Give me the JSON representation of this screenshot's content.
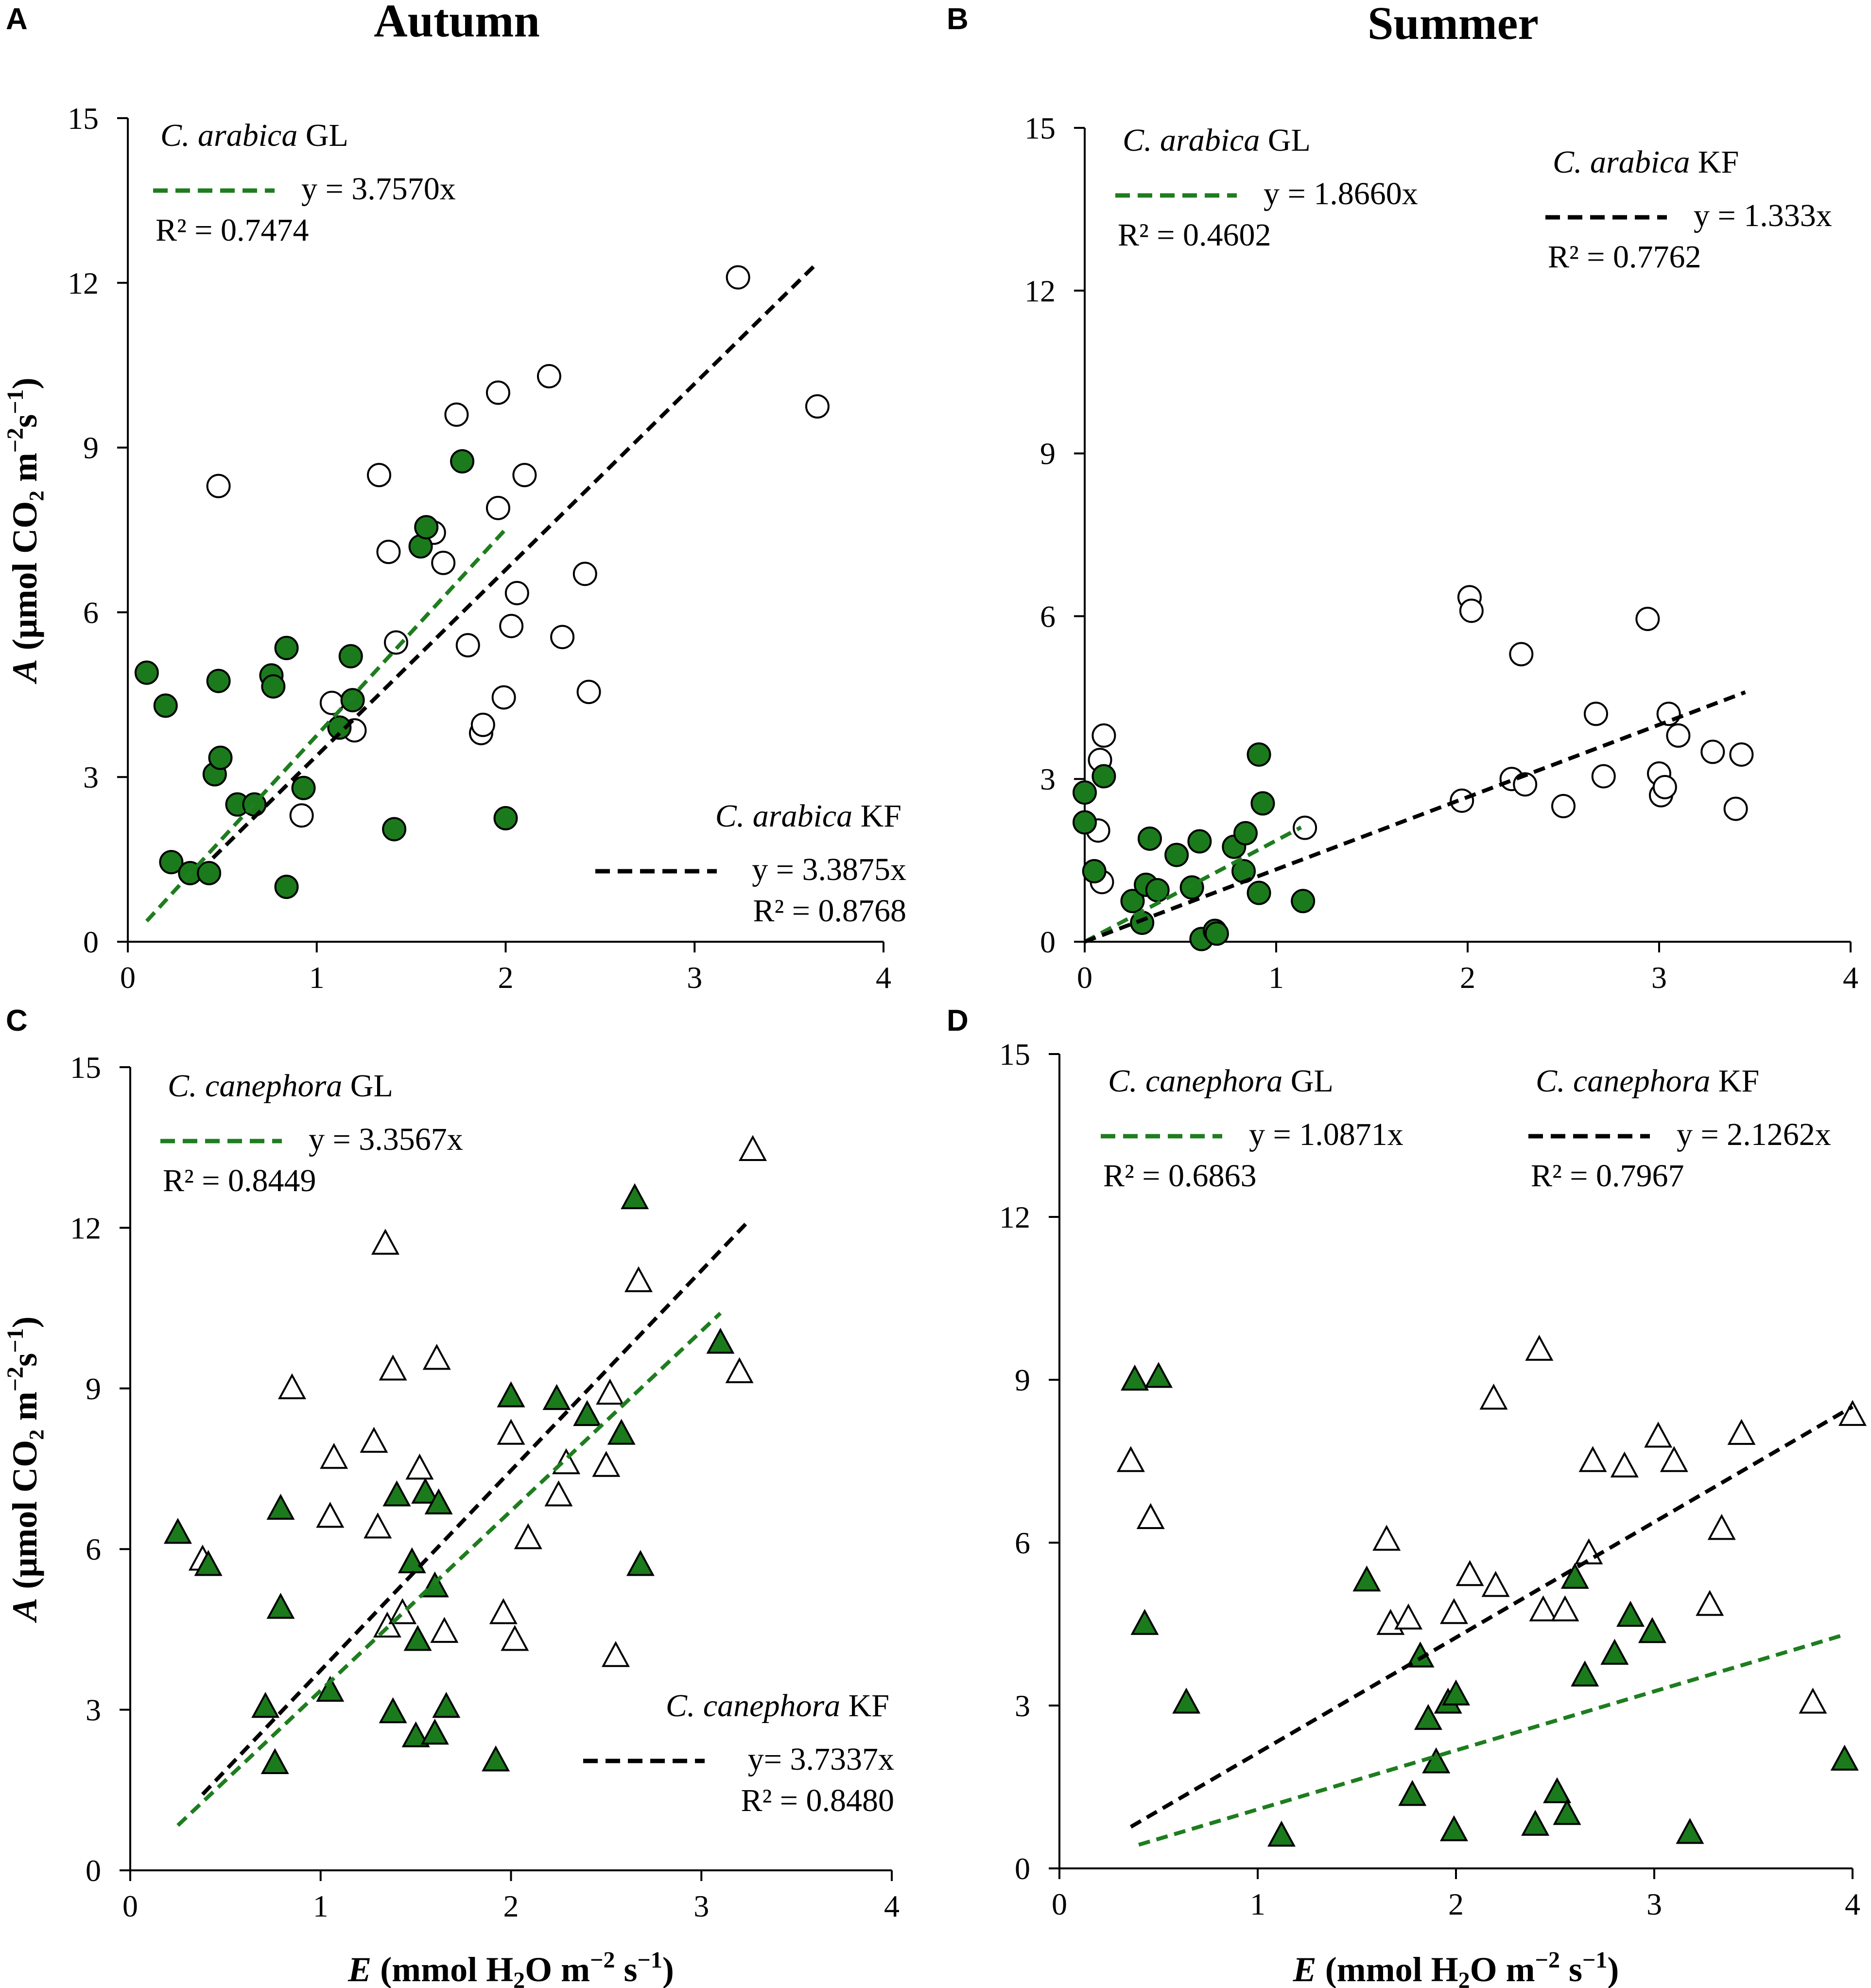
{
  "figure": {
    "col_titles": [
      "Autumn",
      "Summer"
    ],
    "x_axis_label": {
      "italic": "E",
      "rest": " (mmol H",
      "sub": "2",
      "rest2": "O m",
      "sup": "−2",
      "rest3": " s",
      "sup2": "−1",
      "end": ")"
    },
    "y_axis_label": {
      "italic": "A",
      "rest": " (μmol CO₂ m",
      "sup": "−2",
      "rest2": "s",
      "sup2": "−1",
      "end": ")"
    },
    "colors": {
      "gl_green": "#1e7d1e",
      "gl_fill": "#1b7a1b",
      "kf_black": "#000000",
      "open_fill": "#ffffff"
    }
  },
  "chart_data": [
    {
      "panel": "A",
      "type": "scatter",
      "title": "Autumn",
      "marker": "circle",
      "xlim": [
        0,
        4
      ],
      "ylim": [
        0,
        15
      ],
      "xticks": [
        0,
        1,
        2,
        3,
        4
      ],
      "yticks": [
        0,
        3,
        6,
        9,
        12,
        15
      ],
      "xlabel": "E (mmol H2O m−2 s−1)",
      "ylabel": "A (μmol CO₂ m−2s−1)",
      "series": [
        {
          "name": "C. arabica GL",
          "species": "C. arabica",
          "site": "GL",
          "filled": true,
          "equation": "y = 3.7570x",
          "r2": "R² = 0.7474",
          "slope": 3.757,
          "fit_range": [
            0.1,
            2.0
          ],
          "legend_pos": "top-left",
          "points": [
            [
              0.1,
              4.9
            ],
            [
              0.2,
              4.3
            ],
            [
              0.23,
              1.45
            ],
            [
              0.33,
              1.25
            ],
            [
              0.43,
              1.25
            ],
            [
              0.46,
              3.05
            ],
            [
              0.48,
              4.75
            ],
            [
              0.49,
              3.35
            ],
            [
              0.58,
              2.5
            ],
            [
              0.67,
              2.5
            ],
            [
              0.76,
              4.85
            ],
            [
              0.77,
              4.65
            ],
            [
              0.84,
              5.35
            ],
            [
              0.84,
              1.0
            ],
            [
              0.93,
              2.8
            ],
            [
              1.12,
              3.9
            ],
            [
              1.18,
              5.2
            ],
            [
              1.19,
              4.4
            ],
            [
              1.41,
              2.05
            ],
            [
              1.55,
              7.2
            ],
            [
              1.58,
              7.55
            ],
            [
              1.77,
              8.75
            ],
            [
              2.0,
              2.25
            ]
          ]
        },
        {
          "name": "C. arabica KF",
          "species": "C. arabica",
          "site": "KF",
          "filled": false,
          "equation": "y = 3.3875x",
          "r2": "R² = 0.8768",
          "slope": 3.3875,
          "fit_range": [
            0.45,
            3.65
          ],
          "legend_pos": "bottom-right",
          "points": [
            [
              0.48,
              8.3
            ],
            [
              0.92,
              2.3
            ],
            [
              1.08,
              4.35
            ],
            [
              1.2,
              3.85
            ],
            [
              1.33,
              8.5
            ],
            [
              1.38,
              7.1
            ],
            [
              1.42,
              5.45
            ],
            [
              1.62,
              7.45
            ],
            [
              1.67,
              6.9
            ],
            [
              1.74,
              9.6
            ],
            [
              1.8,
              5.4
            ],
            [
              1.87,
              3.8
            ],
            [
              1.88,
              3.95
            ],
            [
              1.96,
              10.0
            ],
            [
              1.96,
              7.9
            ],
            [
              1.99,
              4.45
            ],
            [
              2.03,
              5.75
            ],
            [
              2.06,
              6.35
            ],
            [
              2.1,
              8.5
            ],
            [
              2.23,
              10.3
            ],
            [
              2.3,
              5.55
            ],
            [
              2.42,
              6.7
            ],
            [
              2.44,
              4.55
            ],
            [
              3.23,
              12.1
            ],
            [
              3.65,
              9.75
            ]
          ]
        }
      ]
    },
    {
      "panel": "B",
      "type": "scatter",
      "title": "Summer",
      "marker": "circle",
      "xlim": [
        0,
        4
      ],
      "ylim": [
        0,
        15
      ],
      "xticks": [
        0,
        1,
        2,
        3,
        4
      ],
      "yticks": [
        0,
        3,
        6,
        9,
        12,
        15
      ],
      "xlabel": "E (mmol H2O m−2 s−1)",
      "ylabel": "A (μmol CO₂ m−2s−1)",
      "series": [
        {
          "name": "C. arabica GL",
          "species": "C. arabica",
          "site": "GL",
          "filled": true,
          "equation": "y = 1.8660x",
          "r2": "R² = 0.4602",
          "slope": 1.866,
          "fit_range": [
            0.0,
            1.13
          ],
          "legend_pos": "top-left",
          "points": [
            [
              0.0,
              2.2
            ],
            [
              0.0,
              2.75
            ],
            [
              0.05,
              1.3
            ],
            [
              0.1,
              3.05
            ],
            [
              0.25,
              0.75
            ],
            [
              0.3,
              0.35
            ],
            [
              0.32,
              1.05
            ],
            [
              0.34,
              1.9
            ],
            [
              0.38,
              0.95
            ],
            [
              0.48,
              1.6
            ],
            [
              0.56,
              1.0
            ],
            [
              0.6,
              1.85
            ],
            [
              0.61,
              0.05
            ],
            [
              0.68,
              0.2
            ],
            [
              0.69,
              0.15
            ],
            [
              0.78,
              1.75
            ],
            [
              0.83,
              1.3
            ],
            [
              0.84,
              2.0
            ],
            [
              0.91,
              0.9
            ],
            [
              0.91,
              3.45
            ],
            [
              0.93,
              2.55
            ],
            [
              1.14,
              0.75
            ]
          ]
        },
        {
          "name": "C. arabica KF",
          "species": "C. arabica",
          "site": "KF",
          "filled": false,
          "equation": "y = 1.333x",
          "r2": "R² = 0.7762",
          "slope": 1.333,
          "fit_range": [
            0.0,
            3.45
          ],
          "legend_pos": "top-right",
          "points": [
            [
              0.07,
              2.05
            ],
            [
              0.08,
              3.35
            ],
            [
              0.09,
              1.1
            ],
            [
              0.1,
              3.8
            ],
            [
              1.15,
              2.1
            ],
            [
              1.97,
              2.6
            ],
            [
              2.01,
              6.35
            ],
            [
              2.02,
              6.1
            ],
            [
              2.23,
              3.0
            ],
            [
              2.3,
              2.9
            ],
            [
              2.28,
              5.3
            ],
            [
              2.5,
              2.5
            ],
            [
              2.67,
              4.2
            ],
            [
              2.71,
              3.05
            ],
            [
              2.94,
              5.95
            ],
            [
              3.0,
              3.1
            ],
            [
              3.01,
              2.7
            ],
            [
              3.03,
              2.85
            ],
            [
              3.05,
              4.2
            ],
            [
              3.1,
              3.8
            ],
            [
              3.28,
              3.5
            ],
            [
              3.4,
              2.45
            ],
            [
              3.43,
              3.45
            ]
          ]
        }
      ]
    },
    {
      "panel": "C",
      "type": "scatter",
      "title": "",
      "marker": "triangle",
      "xlim": [
        0,
        4
      ],
      "ylim": [
        0,
        15
      ],
      "xticks": [
        0,
        1,
        2,
        3,
        4
      ],
      "yticks": [
        0,
        3,
        6,
        9,
        12,
        15
      ],
      "xlabel": "E (mmol H2O m−2 s−1)",
      "ylabel": "A (μmol CO₂ m−2s−1)",
      "series": [
        {
          "name": "C. canephora GL",
          "species": "C. canephora",
          "site": "GL",
          "filled": true,
          "equation": "y = 3.3567x",
          "r2": "R² = 0.8449",
          "slope": 3.3567,
          "fit_range": [
            0.25,
            3.1
          ],
          "legend_pos": "top-left",
          "points": [
            [
              0.25,
              6.3
            ],
            [
              0.41,
              5.7
            ],
            [
              0.71,
              3.05
            ],
            [
              0.76,
              2.0
            ],
            [
              0.79,
              6.75
            ],
            [
              0.79,
              4.9
            ],
            [
              1.05,
              3.35
            ],
            [
              1.38,
              2.95
            ],
            [
              1.4,
              7.0
            ],
            [
              1.48,
              5.75
            ],
            [
              1.5,
              2.5
            ],
            [
              1.51,
              4.3
            ],
            [
              1.55,
              7.05
            ],
            [
              1.6,
              5.3
            ],
            [
              1.6,
              2.55
            ],
            [
              1.62,
              6.85
            ],
            [
              1.66,
              3.05
            ],
            [
              1.92,
              2.05
            ],
            [
              2.0,
              8.85
            ],
            [
              2.24,
              8.8
            ],
            [
              2.4,
              8.5
            ],
            [
              2.58,
              8.15
            ],
            [
              2.65,
              12.55
            ],
            [
              2.68,
              5.7
            ],
            [
              3.1,
              9.85
            ]
          ]
        },
        {
          "name": "C. canephora KF",
          "species": "C. canephora",
          "site": "KF",
          "filled": false,
          "equation": "y= 3.7337x",
          "r2": "R² = 0.8480",
          "slope": 3.7337,
          "fit_range": [
            0.38,
            3.25
          ],
          "legend_pos": "bottom-right",
          "points": [
            [
              0.38,
              5.8
            ],
            [
              0.85,
              9.0
            ],
            [
              1.05,
              6.6
            ],
            [
              1.07,
              7.7
            ],
            [
              1.28,
              8.0
            ],
            [
              1.3,
              6.4
            ],
            [
              1.34,
              11.7
            ],
            [
              1.35,
              4.55
            ],
            [
              1.38,
              9.35
            ],
            [
              1.43,
              4.8
            ],
            [
              1.52,
              7.5
            ],
            [
              1.61,
              9.55
            ],
            [
              1.65,
              4.45
            ],
            [
              1.96,
              4.8
            ],
            [
              2.0,
              8.15
            ],
            [
              2.02,
              4.3
            ],
            [
              2.09,
              6.2
            ],
            [
              2.25,
              7.0
            ],
            [
              2.29,
              7.6
            ],
            [
              2.5,
              7.55
            ],
            [
              2.52,
              8.9
            ],
            [
              2.55,
              4.0
            ],
            [
              2.67,
              11.0
            ],
            [
              3.2,
              9.3
            ],
            [
              3.27,
              13.45
            ]
          ]
        }
      ]
    },
    {
      "panel": "D",
      "type": "scatter",
      "title": "",
      "marker": "triangle",
      "xlim": [
        0,
        4
      ],
      "ylim": [
        0,
        15
      ],
      "xticks": [
        0,
        1,
        2,
        3,
        4
      ],
      "yticks": [
        0,
        3,
        6,
        9,
        12,
        15
      ],
      "xlabel": "E (mmol H2O m−2 s−1)",
      "ylabel": "",
      "series": [
        {
          "name": "C. canephora GL",
          "species": "C. canephora",
          "site": "GL",
          "filled": true,
          "equation": "y = 1.0871x",
          "r2": "R² = 0.6863",
          "slope": 1.0871,
          "fit_range": [
            0.4,
            3.95
          ],
          "legend_pos": "top-left",
          "points": [
            [
              0.38,
              9.0
            ],
            [
              0.43,
              4.5
            ],
            [
              0.5,
              9.05
            ],
            [
              0.64,
              3.05
            ],
            [
              1.12,
              0.6
            ],
            [
              1.55,
              5.3
            ],
            [
              1.78,
              1.35
            ],
            [
              1.82,
              3.9
            ],
            [
              1.86,
              2.75
            ],
            [
              1.9,
              1.95
            ],
            [
              1.96,
              3.05
            ],
            [
              1.99,
              0.7
            ],
            [
              2.0,
              3.2
            ],
            [
              2.4,
              0.8
            ],
            [
              2.51,
              1.4
            ],
            [
              2.56,
              1.0
            ],
            [
              2.6,
              5.35
            ],
            [
              2.65,
              3.55
            ],
            [
              2.88,
              4.65
            ],
            [
              2.8,
              3.95
            ],
            [
              2.99,
              4.35
            ],
            [
              3.18,
              0.65
            ],
            [
              3.96,
              2.0
            ]
          ]
        },
        {
          "name": "C. canephora KF",
          "species": "C. canephora",
          "site": "KF",
          "filled": false,
          "equation": "y = 2.1262x",
          "r2": "R² = 0.7967",
          "slope": 2.1262,
          "fit_range": [
            0.36,
            4.0
          ],
          "legend_pos": "top-right",
          "points": [
            [
              0.36,
              7.5
            ],
            [
              0.46,
              6.45
            ],
            [
              1.65,
              6.05
            ],
            [
              1.67,
              4.5
            ],
            [
              1.76,
              4.6
            ],
            [
              1.99,
              4.7
            ],
            [
              2.07,
              5.4
            ],
            [
              2.19,
              8.65
            ],
            [
              2.2,
              5.2
            ],
            [
              2.42,
              9.55
            ],
            [
              2.44,
              4.75
            ],
            [
              2.55,
              4.75
            ],
            [
              2.67,
              5.8
            ],
            [
              2.69,
              7.5
            ],
            [
              2.85,
              7.4
            ],
            [
              3.02,
              7.95
            ],
            [
              3.1,
              7.5
            ],
            [
              3.28,
              4.85
            ],
            [
              3.34,
              6.25
            ],
            [
              3.44,
              8.0
            ],
            [
              3.8,
              3.05
            ],
            [
              4.0,
              8.35
            ]
          ]
        }
      ]
    }
  ]
}
